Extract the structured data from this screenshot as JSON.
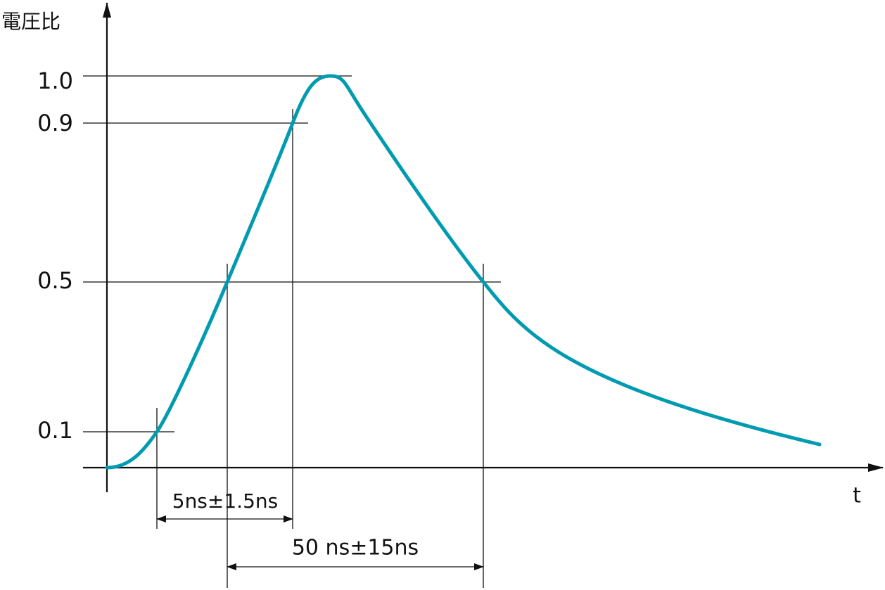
{
  "y_axis_label": "電圧比",
  "x_axis_label": "t",
  "levels": [
    "1.0",
    "0.9",
    "0.5",
    "0.1"
  ],
  "rise_time": "5ns±1.5ns",
  "pulse_width": "50 ns±15ns"
}
